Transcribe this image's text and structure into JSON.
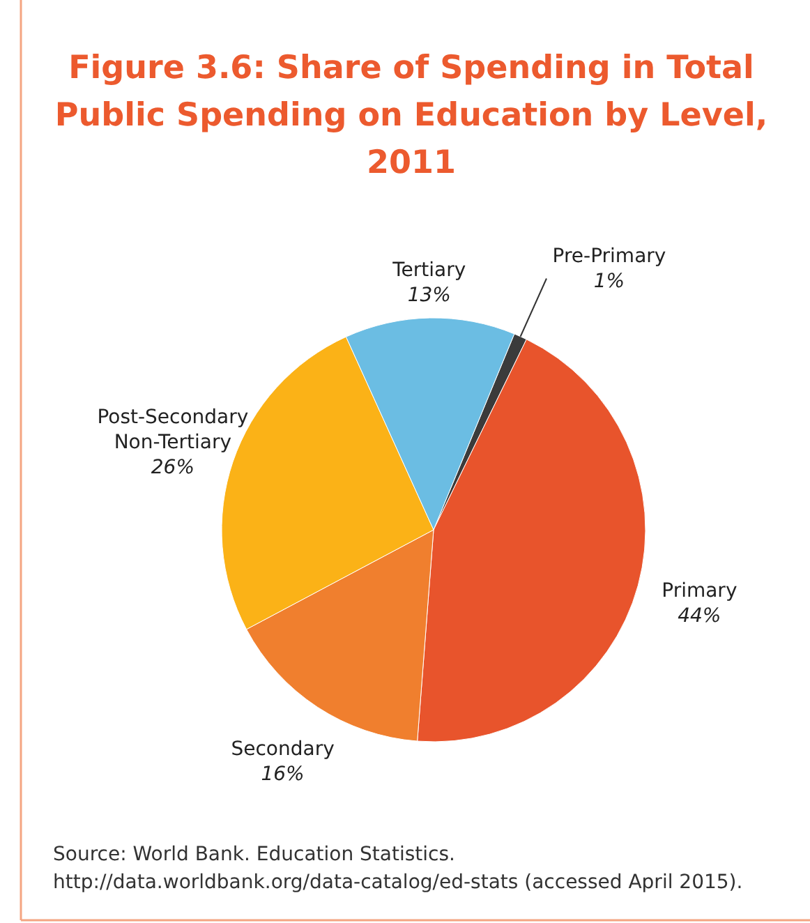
{
  "chart_data": {
    "type": "pie",
    "title": "Figure  3.6: Share of Spending in Total Public Spending on Education by Level, 2011",
    "categories": [
      "Pre-Primary",
      "Primary",
      "Secondary",
      "Post-Secondary Non-Tertiary",
      "Tertiary"
    ],
    "values": [
      1,
      44,
      16,
      26,
      13
    ],
    "colors": [
      "#3b3b3b",
      "#e8542c",
      "#f07f2e",
      "#fbb217",
      "#6bbde3"
    ],
    "value_labels": [
      "1%",
      "44%",
      "16%",
      "26%",
      "13%"
    ],
    "annotations": [
      "Source: World Bank. Education Statistics. http://data.worldbank.org/data-catalog/ed-stats (accessed April 2015)."
    ]
  }
}
